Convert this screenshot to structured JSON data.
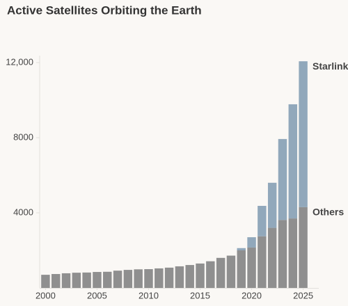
{
  "chart_data": {
    "type": "bar",
    "stacked": true,
    "title": "Active Satellites Orbiting the Earth",
    "x": [
      2000,
      2001,
      2002,
      2003,
      2004,
      2005,
      2006,
      2007,
      2008,
      2009,
      2010,
      2011,
      2012,
      2013,
      2014,
      2015,
      2016,
      2017,
      2018,
      2019,
      2020,
      2021,
      2022,
      2023,
      2024,
      2025
    ],
    "series": [
      {
        "name": "Others",
        "color": "#8f8f8f",
        "values": [
          700,
          740,
          780,
          810,
          820,
          850,
          860,
          920,
          960,
          990,
          1000,
          1040,
          1080,
          1150,
          1220,
          1300,
          1420,
          1600,
          1720,
          2000,
          2150,
          2750,
          3200,
          3620,
          3700,
          4300
        ]
      },
      {
        "name": "Starlink",
        "color": "#91a8bb",
        "values": [
          0,
          0,
          0,
          0,
          0,
          0,
          0,
          0,
          0,
          0,
          0,
          0,
          0,
          0,
          0,
          0,
          0,
          0,
          0,
          120,
          550,
          1620,
          2400,
          4310,
          6080,
          7770
        ]
      }
    ],
    "xlim": [
      1999.5,
      2025.5
    ],
    "xticks": [
      2000,
      2005,
      2010,
      2015,
      2020,
      2025
    ],
    "ylim": [
      0,
      12500
    ],
    "yticks": [
      4000,
      8000,
      {
        "value": 12000,
        "label": "12,000"
      }
    ],
    "grid": false
  }
}
